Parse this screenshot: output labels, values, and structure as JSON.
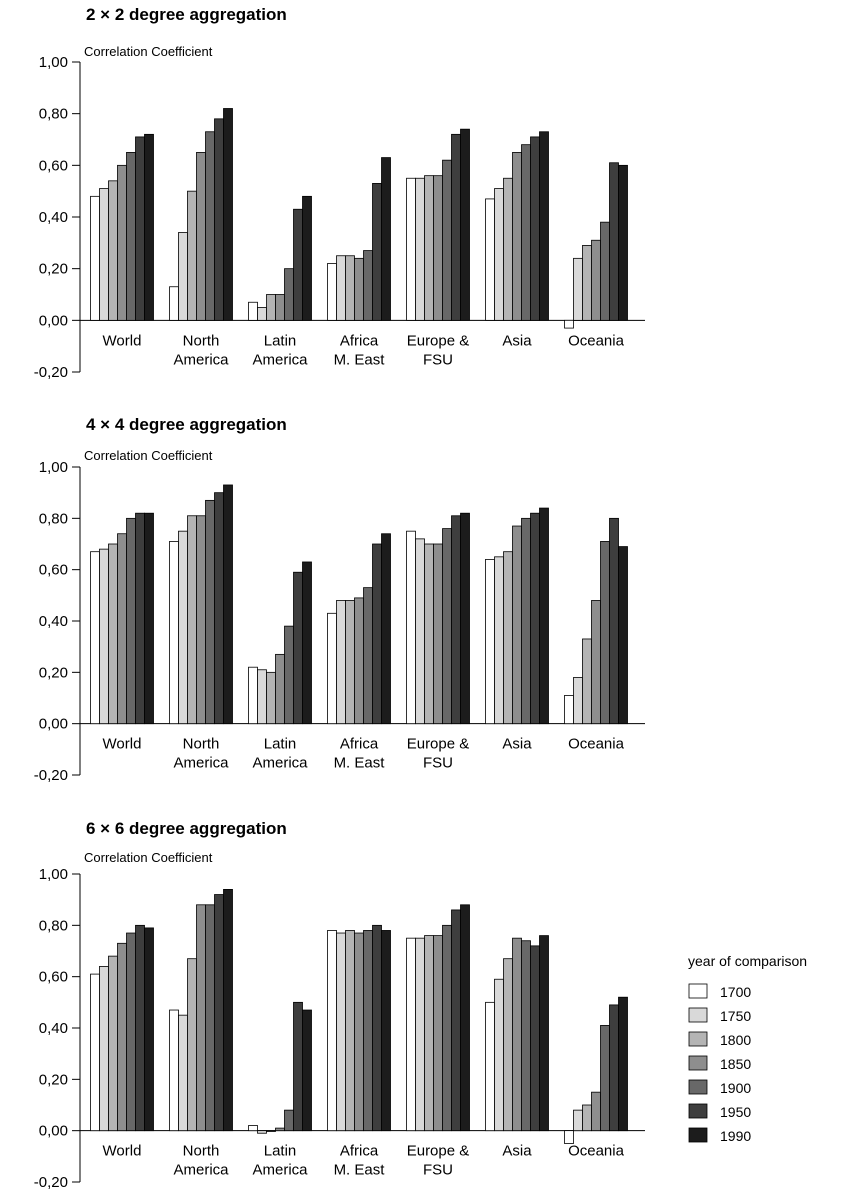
{
  "chart_data": [
    {
      "type": "bar",
      "title": "2 × 2 degree aggregation",
      "ylabel": "Correlation Coefficient",
      "xlabel": "",
      "ylim": [
        -0.2,
        1.0
      ],
      "yticks": [
        "1,00",
        "0,80",
        "0,60",
        "0,40",
        "0,20",
        "0,00",
        "-0,20"
      ],
      "categories": [
        [
          "World"
        ],
        [
          "North",
          "America"
        ],
        [
          "Latin",
          "America"
        ],
        [
          "Africa",
          "M. East"
        ],
        [
          "Europe &",
          "FSU"
        ],
        [
          "Asia"
        ],
        [
          "Oceania"
        ]
      ],
      "series": [
        {
          "name": "1700",
          "values": [
            0.48,
            0.13,
            0.07,
            0.22,
            0.55,
            0.47,
            -0.03
          ]
        },
        {
          "name": "1750",
          "values": [
            0.51,
            0.34,
            0.05,
            0.25,
            0.55,
            0.51,
            0.24
          ]
        },
        {
          "name": "1800",
          "values": [
            0.54,
            0.5,
            0.1,
            0.25,
            0.56,
            0.55,
            0.29
          ]
        },
        {
          "name": "1850",
          "values": [
            0.6,
            0.65,
            0.1,
            0.24,
            0.56,
            0.65,
            0.31
          ]
        },
        {
          "name": "1900",
          "values": [
            0.65,
            0.73,
            0.2,
            0.27,
            0.62,
            0.68,
            0.38
          ]
        },
        {
          "name": "1950",
          "values": [
            0.71,
            0.78,
            0.43,
            0.53,
            0.72,
            0.71,
            0.61
          ]
        },
        {
          "name": "1990",
          "values": [
            0.72,
            0.82,
            0.48,
            0.63,
            0.74,
            0.73,
            0.6
          ]
        }
      ]
    },
    {
      "type": "bar",
      "title": "4 × 4 degree aggregation",
      "ylabel": "Correlation Coefficient",
      "xlabel": "",
      "ylim": [
        -0.2,
        1.0
      ],
      "yticks": [
        "1,00",
        "0,80",
        "0,60",
        "0,40",
        "0,20",
        "0,00",
        "-0,20"
      ],
      "categories": [
        [
          "World"
        ],
        [
          "North",
          "America"
        ],
        [
          "Latin",
          "America"
        ],
        [
          "Africa",
          "M. East"
        ],
        [
          "Europe &",
          "FSU"
        ],
        [
          "Asia"
        ],
        [
          "Oceania"
        ]
      ],
      "series": [
        {
          "name": "1700",
          "values": [
            0.67,
            0.71,
            0.22,
            0.43,
            0.75,
            0.64,
            0.11
          ]
        },
        {
          "name": "1750",
          "values": [
            0.68,
            0.75,
            0.21,
            0.48,
            0.72,
            0.65,
            0.18
          ]
        },
        {
          "name": "1800",
          "values": [
            0.7,
            0.81,
            0.2,
            0.48,
            0.7,
            0.67,
            0.33
          ]
        },
        {
          "name": "1850",
          "values": [
            0.74,
            0.81,
            0.27,
            0.49,
            0.7,
            0.77,
            0.48
          ]
        },
        {
          "name": "1900",
          "values": [
            0.8,
            0.87,
            0.38,
            0.53,
            0.76,
            0.8,
            0.71
          ]
        },
        {
          "name": "1950",
          "values": [
            0.82,
            0.9,
            0.59,
            0.7,
            0.81,
            0.82,
            0.8
          ]
        },
        {
          "name": "1990",
          "values": [
            0.82,
            0.93,
            0.63,
            0.74,
            0.82,
            0.84,
            0.69
          ]
        }
      ]
    },
    {
      "type": "bar",
      "title": "6 × 6 degree aggregation",
      "ylabel": "Correlation Coefficient",
      "xlabel": "",
      "ylim": [
        -0.2,
        1.0
      ],
      "yticks": [
        "1,00",
        "0,80",
        "0,60",
        "0,40",
        "0,20",
        "0,00",
        "-0,20"
      ],
      "categories": [
        [
          "World"
        ],
        [
          "North",
          "America"
        ],
        [
          "Latin",
          "America"
        ],
        [
          "Africa",
          "M. East"
        ],
        [
          "Europe &",
          "FSU"
        ],
        [
          "Asia"
        ],
        [
          "Oceania"
        ]
      ],
      "series": [
        {
          "name": "1700",
          "values": [
            0.61,
            0.47,
            0.02,
            0.78,
            0.75,
            0.5,
            -0.05
          ]
        },
        {
          "name": "1750",
          "values": [
            0.64,
            0.45,
            -0.01,
            0.77,
            0.75,
            0.59,
            0.08
          ]
        },
        {
          "name": "1800",
          "values": [
            0.68,
            0.67,
            0.0,
            0.78,
            0.76,
            0.67,
            0.1
          ]
        },
        {
          "name": "1850",
          "values": [
            0.73,
            0.88,
            0.01,
            0.77,
            0.76,
            0.75,
            0.15
          ]
        },
        {
          "name": "1900",
          "values": [
            0.77,
            0.88,
            0.08,
            0.78,
            0.8,
            0.74,
            0.41
          ]
        },
        {
          "name": "1950",
          "values": [
            0.8,
            0.92,
            0.5,
            0.8,
            0.86,
            0.72,
            0.49
          ]
        },
        {
          "name": "1990",
          "values": [
            0.79,
            0.94,
            0.47,
            0.78,
            0.88,
            0.76,
            0.52
          ]
        }
      ]
    }
  ],
  "legend": {
    "title": "year of comparison",
    "placement": "right",
    "items": [
      {
        "label": "1700",
        "color": "#ffffff"
      },
      {
        "label": "1750",
        "color": "#d9d9d9"
      },
      {
        "label": "1800",
        "color": "#b4b4b4"
      },
      {
        "label": "1850",
        "color": "#8e8e8e"
      },
      {
        "label": "1900",
        "color": "#686868"
      },
      {
        "label": "1950",
        "color": "#3e3e3e"
      },
      {
        "label": "1990",
        "color": "#1c1c1c"
      }
    ]
  }
}
